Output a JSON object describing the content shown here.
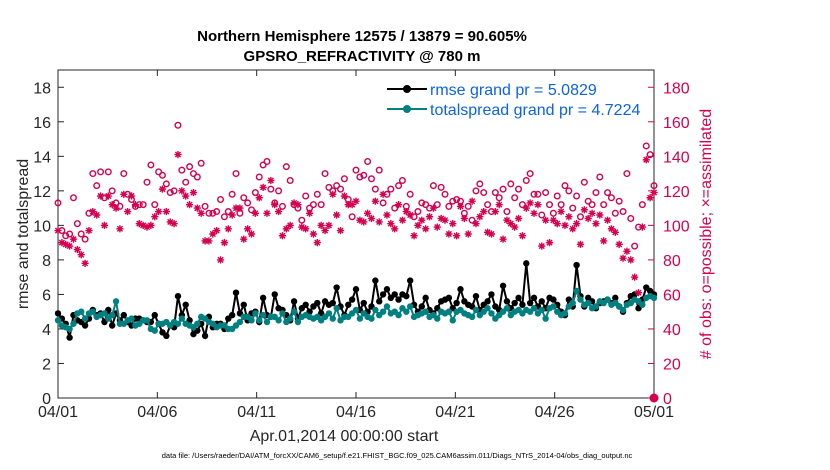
{
  "chart_data": {
    "type": "line",
    "title": "Northern Hemisphere 12575 / 13879 = 90.605%",
    "subtitle": "GPSRO_REFRACTIVITY @ 780 m",
    "ylabel": "rmse and totalspread",
    "y2label": "# of obs: o=possible; ×=assimilated",
    "xlabel": "Apr.01,2014 00:00:00 start",
    "footnote": "data file: /Users/raeder/DAI/ATM_forcXX/CAM6_setup/f.e21.FHIST_BGC.f09_025.CAM6assim.011/Diags_NTrS_2014-04/obs_diag_output.nc",
    "xlim": [
      0,
      30
    ],
    "ylim": [
      0,
      19
    ],
    "y2lim": [
      0,
      190
    ],
    "x_ticks": [
      {
        "x": 0,
        "label": "04/01"
      },
      {
        "x": 5,
        "label": "04/06"
      },
      {
        "x": 10,
        "label": "04/11"
      },
      {
        "x": 15,
        "label": "04/16"
      },
      {
        "x": 20,
        "label": "04/21"
      },
      {
        "x": 25,
        "label": "04/26"
      },
      {
        "x": 30,
        "label": "05/01"
      }
    ],
    "y_ticks": [
      0,
      2,
      4,
      6,
      8,
      10,
      12,
      14,
      16,
      18
    ],
    "y2_ticks": [
      0,
      20,
      40,
      60,
      80,
      100,
      120,
      140,
      160,
      180
    ],
    "legend_position": "top-right",
    "series": [
      {
        "name": "rmse grand pr = 5.0829",
        "color": "#000000",
        "marker": "dot",
        "axis": "left",
        "values": [
          4.9,
          4.6,
          4.3,
          3.5,
          4.8,
          4.5,
          4.4,
          4.2,
          4.6,
          5.1,
          4.8,
          4.9,
          4.4,
          5.1,
          4.2,
          4.9,
          4.5,
          4.8,
          4.4,
          4.2,
          4.6,
          4.6,
          4.5,
          4.4,
          4.4,
          4.8,
          4.3,
          3.8,
          3.6,
          4.2,
          4.1,
          5.9,
          4.8,
          5.4,
          4.5,
          3.7,
          3.9,
          4.3,
          3.6,
          4.7,
          4.1,
          4.3,
          4.3,
          4.0,
          4.6,
          4.8,
          6.1,
          4.9,
          5.4,
          4.5,
          4.9,
          5.0,
          4.4,
          5.8,
          4.8,
          4.7,
          6.0,
          5.2,
          5.1,
          4.8,
          4.5,
          5.6,
          4.6,
          5.2,
          5.4,
          5.0,
          5.3,
          5.5,
          4.9,
          5.6,
          5.4,
          5.5,
          6.4,
          5.3,
          4.8,
          5.4,
          5.7,
          6.3,
          5.1,
          5.5,
          5.0,
          5.3,
          6.8,
          5.6,
          6.0,
          6.3,
          5.8,
          6.0,
          5.7,
          6.0,
          5.9,
          6.8,
          5.4,
          5.0,
          5.3,
          5.8,
          5.1,
          4.9,
          5.2,
          5.6,
          5.7,
          5.8,
          5.2,
          5.5,
          6.3,
          5.6,
          5.4,
          5.3,
          5.9,
          5.1,
          5.4,
          5.6,
          6.0,
          5.3,
          5.1,
          6.5,
          5.6,
          5.2,
          5.5,
          5.8,
          5.4,
          7.8,
          5.5,
          5.8,
          5.3,
          5.6,
          5.2,
          5.8,
          5.7,
          5.4,
          5.0,
          4.8,
          5.7,
          5.3,
          7.7,
          5.9,
          5.3,
          5.8,
          5.6,
          5.2,
          5.5,
          5.6,
          5.7,
          5.5,
          5.8,
          5.3,
          5.0,
          5.5,
          5.9,
          6.0,
          5.2,
          5.7,
          6.4,
          6.2,
          6.0
        ]
      },
      {
        "name": "totalspread grand pr = 4.7224",
        "color": "#008080",
        "marker": "dot",
        "axis": "left",
        "values": [
          4.5,
          4.2,
          4.1,
          4.0,
          4.3,
          4.9,
          5.0,
          4.6,
          4.9,
          5.0,
          4.7,
          4.8,
          4.9,
          4.6,
          4.8,
          5.6,
          4.3,
          4.3,
          4.5,
          4.6,
          4.2,
          4.3,
          4.5,
          4.5,
          4.0,
          3.9,
          4.3,
          4.3,
          4.4,
          4.2,
          4.4,
          4.3,
          4.6,
          4.3,
          4.2,
          4.1,
          4.3,
          4.7,
          4.6,
          4.4,
          4.3,
          4.1,
          4.2,
          4.2,
          4.0,
          4.0,
          4.2,
          4.4,
          4.7,
          4.7,
          4.5,
          4.9,
          4.5,
          4.8,
          4.4,
          4.7,
          4.7,
          4.5,
          4.9,
          4.4,
          4.6,
          5.0,
          4.4,
          4.7,
          4.8,
          4.7,
          4.6,
          4.7,
          4.5,
          4.7,
          4.9,
          4.6,
          5.2,
          4.5,
          4.7,
          4.7,
          4.9,
          5.1,
          4.6,
          4.9,
          4.7,
          4.6,
          5.1,
          4.8,
          5.0,
          5.3,
          4.9,
          5.0,
          4.8,
          5.2,
          5.0,
          5.3,
          4.7,
          4.8,
          4.9,
          5.0,
          4.7,
          4.8,
          4.6,
          5.0,
          4.9,
          5.0,
          4.5,
          5.0,
          5.1,
          4.9,
          4.8,
          4.7,
          5.1,
          4.8,
          5.0,
          5.2,
          4.9,
          4.6,
          4.8,
          5.0,
          5.2,
          4.8,
          5.0,
          5.1,
          4.9,
          5.1,
          5.0,
          5.2,
          4.9,
          5.1,
          4.6,
          5.2,
          5.3,
          5.0,
          4.8,
          4.9,
          5.3,
          5.5,
          6.2,
          5.7,
          5.4,
          5.5,
          5.2,
          5.3,
          5.6,
          5.5,
          5.7,
          5.4,
          5.5,
          5.3,
          5.1,
          5.4,
          5.5,
          5.7,
          5.6,
          5.4,
          5.8,
          5.9,
          5.8
        ]
      },
      {
        "name": "possible",
        "color": "#d6004f",
        "marker": "circle",
        "axis": "right",
        "values": [
          113,
          97,
          94,
          95,
          116,
          101,
          95,
          92,
          107,
          130,
          123,
          131,
          116,
          131,
          120,
          113,
          111,
          130,
          118,
          115,
          111,
          112,
          112,
          125,
          135,
          112,
          131,
          129,
          124,
          119,
          120,
          158,
          132,
          125,
          134,
          130,
          128,
          136,
          111,
          107,
          107,
          108,
          115,
          105,
          108,
          118,
          130,
          107,
          116,
          113,
          109,
          119,
          128,
          135,
          137,
          121,
          113,
          120,
          111,
          134,
          126,
          112,
          110,
          103,
          117,
          110,
          112,
          118,
          112,
          130,
          122,
          120,
          123,
          121,
          127,
          115,
          105,
          132,
          128,
          129,
          137,
          127,
          121,
          132,
          113,
          118,
          121,
          110,
          123,
          126,
          111,
          118,
          105,
          108,
          113,
          112,
          110,
          123,
          112,
          122,
          118,
          111,
          114,
          115,
          114,
          107,
          111,
          103,
          120,
          124,
          119,
          112,
          108,
          119,
          116,
          121,
          108,
          124,
          116,
          121,
          112,
          126,
          130,
          118,
          118,
          106,
          119,
          112,
          107,
          117,
          112,
          123,
          120,
          110,
          117,
          105,
          125,
          114,
          112,
          119,
          128,
          112,
          119,
          116,
          107,
          114,
          108,
          130,
          104,
          88,
          99,
          112,
          146,
          141,
          123
        ]
      },
      {
        "name": "assimilated",
        "color": "#d6004f",
        "marker": "asterisk",
        "axis": "right",
        "values": [
          97,
          90,
          89,
          88,
          92,
          86,
          83,
          78,
          97,
          108,
          106,
          117,
          100,
          117,
          112,
          110,
          98,
          118,
          108,
          117,
          112,
          101,
          100,
          99,
          100,
          105,
          108,
          121,
          108,
          102,
          101,
          141,
          120,
          117,
          112,
          119,
          110,
          107,
          91,
          91,
          95,
          97,
          80,
          90,
          98,
          106,
          110,
          110,
          92,
          98,
          95,
          107,
          116,
          122,
          107,
          126,
          112,
          108,
          94,
          98,
          100,
          113,
          112,
          99,
          98,
          107,
          95,
          90,
          100,
          97,
          100,
          118,
          106,
          97,
          117,
          112,
          112,
          114,
          103,
          102,
          107,
          104,
          114,
          102,
          118,
          106,
          101,
          98,
          112,
          103,
          108,
          106,
          94,
          100,
          103,
          98,
          105,
          110,
          99,
          104,
          103,
          95,
          101,
          94,
          111,
          104,
          95,
          114,
          101,
          105,
          108,
          96,
          95,
          108,
          112,
          92,
          103,
          101,
          99,
          104,
          94,
          110,
          113,
          107,
          112,
          88,
          103,
          90,
          103,
          101,
          108,
          100,
          105,
          98,
          101,
          89,
          109,
          104,
          107,
          101,
          106,
          91,
          103,
          98,
          96,
          89,
          81,
          85,
          80,
          70,
          61,
          99,
          138,
          116,
          119
        ]
      }
    ]
  }
}
